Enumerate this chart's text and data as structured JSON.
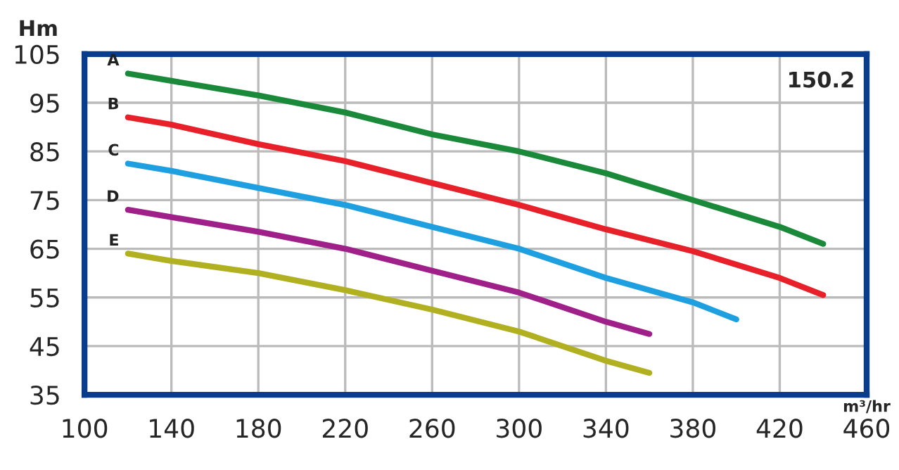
{
  "chart_data": {
    "type": "line",
    "xlabel": "m³/hr",
    "ylabel": "Hm",
    "xlim": [
      100,
      460
    ],
    "xticks": [
      100,
      140,
      180,
      220,
      260,
      300,
      340,
      380,
      420,
      460
    ],
    "ylim": [
      35,
      105
    ],
    "yticks": [
      35,
      45,
      55,
      65,
      75,
      85,
      95,
      105
    ],
    "grid": true,
    "marker": "none",
    "line_style": "solid",
    "annotations": [
      "150.2"
    ],
    "series": [
      {
        "name": "A",
        "color": "#1a8a3a",
        "x": [
          120,
          140,
          180,
          220,
          260,
          300,
          340,
          380,
          420,
          440
        ],
        "values": [
          101,
          99.5,
          96.5,
          93,
          88.5,
          85,
          80.5,
          75,
          69.5,
          66
        ]
      },
      {
        "name": "B",
        "color": "#e8202a",
        "x": [
          120,
          140,
          180,
          220,
          260,
          300,
          340,
          380,
          420,
          440
        ],
        "values": [
          92,
          90.5,
          86.5,
          83,
          78.5,
          74,
          69,
          64.5,
          59,
          55.5
        ]
      },
      {
        "name": "C",
        "color": "#1ea0e0",
        "x": [
          120,
          140,
          180,
          220,
          260,
          300,
          340,
          380,
          400
        ],
        "values": [
          82.5,
          81,
          77.5,
          74,
          69.5,
          65,
          59,
          54,
          50.5
        ]
      },
      {
        "name": "D",
        "color": "#a0208a",
        "x": [
          120,
          140,
          180,
          220,
          260,
          300,
          340,
          360
        ],
        "values": [
          73,
          71.5,
          68.5,
          65,
          60.5,
          56,
          50,
          47.5
        ]
      },
      {
        "name": "E",
        "color": "#b0b020",
        "x": [
          120,
          140,
          180,
          220,
          260,
          300,
          340,
          360
        ],
        "values": [
          64,
          62.5,
          60,
          56.5,
          52.5,
          48,
          42,
          39.5
        ]
      }
    ]
  }
}
